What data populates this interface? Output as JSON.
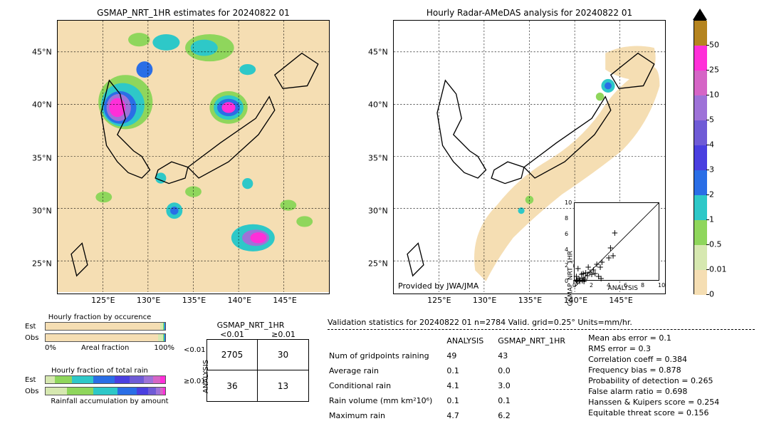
{
  "date_label": "20240822 01",
  "map_left": {
    "title": "GSMAP_NRT_1HR estimates for 20240822 01",
    "bg": "#f5deb3",
    "xticks": [
      "125°E",
      "130°E",
      "135°E",
      "140°E",
      "145°E"
    ],
    "yticks": [
      "25°N",
      "30°N",
      "35°N",
      "40°N",
      "45°N"
    ],
    "xlim": [
      120,
      150
    ],
    "ylim": [
      22,
      48
    ]
  },
  "map_right": {
    "title": "Hourly Radar-AMeDAS analysis for 20240822 01",
    "bg": "#ffffff",
    "attrib": "Provided by JWA/JMA",
    "coverage_fill": "#f5deb3",
    "xticks": [
      "125°E",
      "130°E",
      "135°E",
      "140°E",
      "145°E"
    ],
    "yticks": [
      "25°N",
      "30°N",
      "35°N",
      "40°N",
      "45°N"
    ],
    "xlim": [
      120,
      150
    ],
    "ylim": [
      22,
      48
    ]
  },
  "colorbar": {
    "ticks": [
      "0",
      "0.01",
      "0.5",
      "1",
      "2",
      "3",
      "4",
      "5",
      "10",
      "25",
      "50"
    ],
    "colors": [
      "#f5deb3",
      "#d6e8b0",
      "#8fd65c",
      "#2ec8c8",
      "#2a6ee6",
      "#4a3fe0",
      "#6f5bd6",
      "#9e72d8",
      "#d565c6",
      "#ff2fd8",
      "#b5841f"
    ],
    "over_color": "#000000"
  },
  "scatter_inset": {
    "xlabel": "ANALYSIS",
    "ylabel": "GSMAP_NRT_1HR",
    "lim": [
      0,
      10
    ],
    "ticks": [
      0,
      2,
      4,
      6,
      8,
      10
    ],
    "pts": [
      [
        0.2,
        0.1
      ],
      [
        0.3,
        0.2
      ],
      [
        0.5,
        0.4
      ],
      [
        0.6,
        0.2
      ],
      [
        0.8,
        0.9
      ],
      [
        1.0,
        0.5
      ],
      [
        1.2,
        0.3
      ],
      [
        1.0,
        1.0
      ],
      [
        1.3,
        1.1
      ],
      [
        1.5,
        0.7
      ],
      [
        1.6,
        1.8
      ],
      [
        1.8,
        1.2
      ],
      [
        2.0,
        0.9
      ],
      [
        2.2,
        1.5
      ],
      [
        2.4,
        1.0
      ],
      [
        2.6,
        2.2
      ],
      [
        3.0,
        1.8
      ],
      [
        3.2,
        2.5
      ],
      [
        4.0,
        3.0
      ],
      [
        4.5,
        3.3
      ],
      [
        4.7,
        6.2
      ],
      [
        0.4,
        1.6
      ],
      [
        0.2,
        0.6
      ],
      [
        0.9,
        0.1
      ],
      [
        1.1,
        0.0
      ],
      [
        2.8,
        0.6
      ],
      [
        0.3,
        0.0
      ],
      [
        0.6,
        0.0
      ],
      [
        4.2,
        4.3
      ],
      [
        3.1,
        0.4
      ]
    ]
  },
  "frac_occurrence": {
    "title": "Hourly fraction by occurence",
    "rows": [
      "Est",
      "Obs"
    ],
    "axis_l": "0%",
    "axis_m": "Areal fraction",
    "axis_r": "100%",
    "est": [
      [
        "#f5deb3",
        96
      ],
      [
        "#d6e8b0",
        2
      ],
      [
        "#8fd65c",
        1
      ],
      [
        "#2ec8c8",
        0.5
      ],
      [
        "#2a6ee6",
        0.5
      ]
    ],
    "obs": [
      [
        "#f5deb3",
        94
      ],
      [
        "#d6e8b0",
        4
      ],
      [
        "#8fd65c",
        1
      ],
      [
        "#2ec8c8",
        0.5
      ],
      [
        "#2a6ee6",
        0.5
      ]
    ]
  },
  "frac_totalrain": {
    "title": "Hourly fraction of total rain",
    "rows": [
      "Est",
      "Obs"
    ],
    "footer": "Rainfall accumulation by amount",
    "est": [
      [
        "#d6e8b0",
        8
      ],
      [
        "#8fd65c",
        14
      ],
      [
        "#2ec8c8",
        18
      ],
      [
        "#2a6ee6",
        18
      ],
      [
        "#4a3fe0",
        12
      ],
      [
        "#6f5bd6",
        12
      ],
      [
        "#9e72d8",
        8
      ],
      [
        "#d565c6",
        6
      ],
      [
        "#ff2fd8",
        4
      ]
    ],
    "obs": [
      [
        "#d6e8b0",
        18
      ],
      [
        "#8fd65c",
        22
      ],
      [
        "#2ec8c8",
        20
      ],
      [
        "#2a6ee6",
        16
      ],
      [
        "#4a3fe0",
        10
      ],
      [
        "#6f5bd6",
        6
      ],
      [
        "#9e72d8",
        4
      ],
      [
        "#d565c6",
        2
      ],
      [
        "#ff2fd8",
        2
      ]
    ]
  },
  "contingency": {
    "col_header": "GSMAP_NRT_1HR",
    "row_header": "ANALYSIS",
    "col_labels": [
      "<0.01",
      "≥0.01"
    ],
    "row_labels": [
      "<0.01",
      "≥0.01"
    ],
    "cells": [
      [
        "2705",
        "30"
      ],
      [
        "36",
        "13"
      ]
    ]
  },
  "validation": {
    "title": "Validation statistics for 20240822 01  n=2784 Valid. grid=0.25° Units=mm/hr.",
    "col_headers": [
      "",
      "ANALYSIS",
      "GSMAP_NRT_1HR"
    ],
    "rows": [
      [
        "Num of gridpoints raining",
        "49",
        "43"
      ],
      [
        "Average rain",
        "0.1",
        "0.0"
      ],
      [
        "Conditional rain",
        "4.1",
        "3.0"
      ],
      [
        "Rain volume (mm km²10⁶)",
        "0.1",
        "0.1"
      ],
      [
        "Maximum rain",
        "4.7",
        "6.2"
      ]
    ],
    "scores": [
      "Mean abs error =    0.1",
      "RMS error =    0.3",
      "Correlation coeff =  0.384",
      "Frequency bias =  0.878",
      "Probability of detection =  0.265",
      "False alarm ratio =  0.698",
      "Hanssen & Kuipers score =  0.254",
      "Equitable threat score =  0.156"
    ]
  }
}
